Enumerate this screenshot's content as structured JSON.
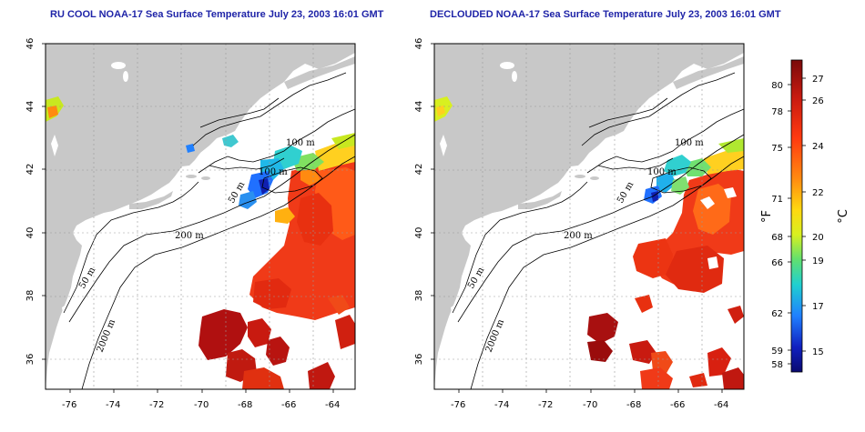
{
  "titles": {
    "left": "RU COOL NOAA-17 Sea Surface Temperature July 23, 2003 16:01 GMT",
    "right": "DECLOUDED NOAA-17 Sea Surface Temperature July 23, 2003 16:01 GMT"
  },
  "axes": {
    "lon_ticks": [
      "-76",
      "-74",
      "-72",
      "-70",
      "-68",
      "-66",
      "-64"
    ],
    "lat_ticks": [
      "36",
      "38",
      "40",
      "42",
      "44",
      "46"
    ]
  },
  "contour_labels": {
    "left": [
      "100 m",
      "100 m",
      "50 m",
      "200 m",
      "50 m",
      "2000 m"
    ],
    "right": [
      "100 m",
      "100 m",
      "50 m",
      "200 m",
      "50 m",
      "2000 m"
    ]
  },
  "colorbar": {
    "fahrenheit_ticks": [
      "80",
      "78",
      "75",
      "71",
      "68",
      "66",
      "62",
      "59",
      "58"
    ],
    "celsius_ticks": [
      "27",
      "26",
      "24",
      "22",
      "20",
      "19",
      "17",
      "15"
    ],
    "fahrenheit_unit": "°F",
    "celsius_unit": "°C",
    "colors": [
      "#7a0a0a",
      "#c81a10",
      "#ff3a10",
      "#ff8a10",
      "#ffd810",
      "#d8f020",
      "#60e070",
      "#20d0d0",
      "#2080ff",
      "#1020c0",
      "#0a0a70"
    ]
  },
  "colors": {
    "land": "#c8c8c8",
    "ocean": "#ffffff",
    "title": "#1f24a8",
    "warm_water": "#f03a18",
    "hot_water": "#b01010"
  }
}
